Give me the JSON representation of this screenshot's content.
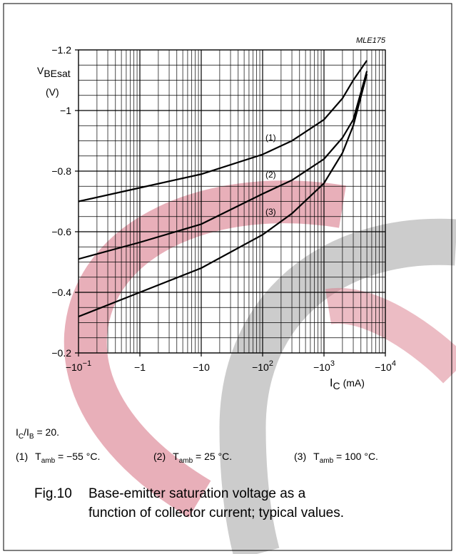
{
  "chart_data": {
    "type": "line",
    "code": "MLE175",
    "ylabel": {
      "symbol": "V",
      "sub": "BEsat",
      "unit": "(V)"
    },
    "xlabel": {
      "symbol": "I",
      "sub": "C",
      "unit": "(mA)"
    },
    "log_scale_x": true,
    "grid": true,
    "minor_grid": true,
    "xlim": [
      -0.1,
      -10000
    ],
    "xticks": [
      {
        "value": -0.1,
        "label": "−10",
        "exponent": "−1"
      },
      {
        "value": -1,
        "label": "−1"
      },
      {
        "value": -10,
        "label": "−10"
      },
      {
        "value": -100,
        "label": "−10",
        "exponent": "2"
      },
      {
        "value": -1000,
        "label": "−10",
        "exponent": "3"
      },
      {
        "value": -10000,
        "label": "−10",
        "exponent": "4"
      }
    ],
    "ylim": [
      -0.2,
      -1.2
    ],
    "yticks": [
      {
        "value": -1.2,
        "label": "−1.2"
      },
      {
        "value": -1,
        "label": "−1"
      },
      {
        "value": -0.8,
        "label": "−0.8"
      },
      {
        "value": -0.6,
        "label": "−0.6"
      },
      {
        "value": -0.4,
        "label": "−0.4"
      },
      {
        "value": -0.2,
        "label": "−0.2"
      }
    ],
    "x": [
      -0.1,
      -1,
      -10,
      -100,
      -300,
      -1000,
      -2000,
      -3000,
      -5000
    ],
    "series": [
      {
        "name": "(1)",
        "color": "#000000",
        "values": [
          -0.7,
          -0.745,
          -0.79,
          -0.855,
          -0.9,
          -0.97,
          -1.04,
          -1.1,
          -1.165
        ]
      },
      {
        "name": "(2)",
        "color": "#000000",
        "values": [
          -0.51,
          -0.565,
          -0.625,
          -0.725,
          -0.77,
          -0.84,
          -0.91,
          -0.97,
          -1.13
        ]
      },
      {
        "name": "(3)",
        "color": "#000000",
        "values": [
          -0.32,
          -0.4,
          -0.48,
          -0.59,
          -0.66,
          -0.76,
          -0.86,
          -0.95,
          -1.12
        ]
      }
    ]
  },
  "condition": {
    "a": "I",
    "a_sub": "C",
    "slash": "/I",
    "b_sub": "B",
    "text": " = 20."
  },
  "notes": [
    {
      "label": "(1)",
      "symbol": "T",
      "sub": "amb",
      "text": " = −55 °C."
    },
    {
      "label": "(2)",
      "symbol": "T",
      "sub": "amb",
      "text": " = 25 °C."
    },
    {
      "label": "(3)",
      "symbol": "T",
      "sub": "amb",
      "text": " = 100 °C."
    }
  ],
  "caption": {
    "label": "Fig.10",
    "line1": "Base-emitter saturation voltage as a",
    "line2": "function of collector current; typical values."
  }
}
